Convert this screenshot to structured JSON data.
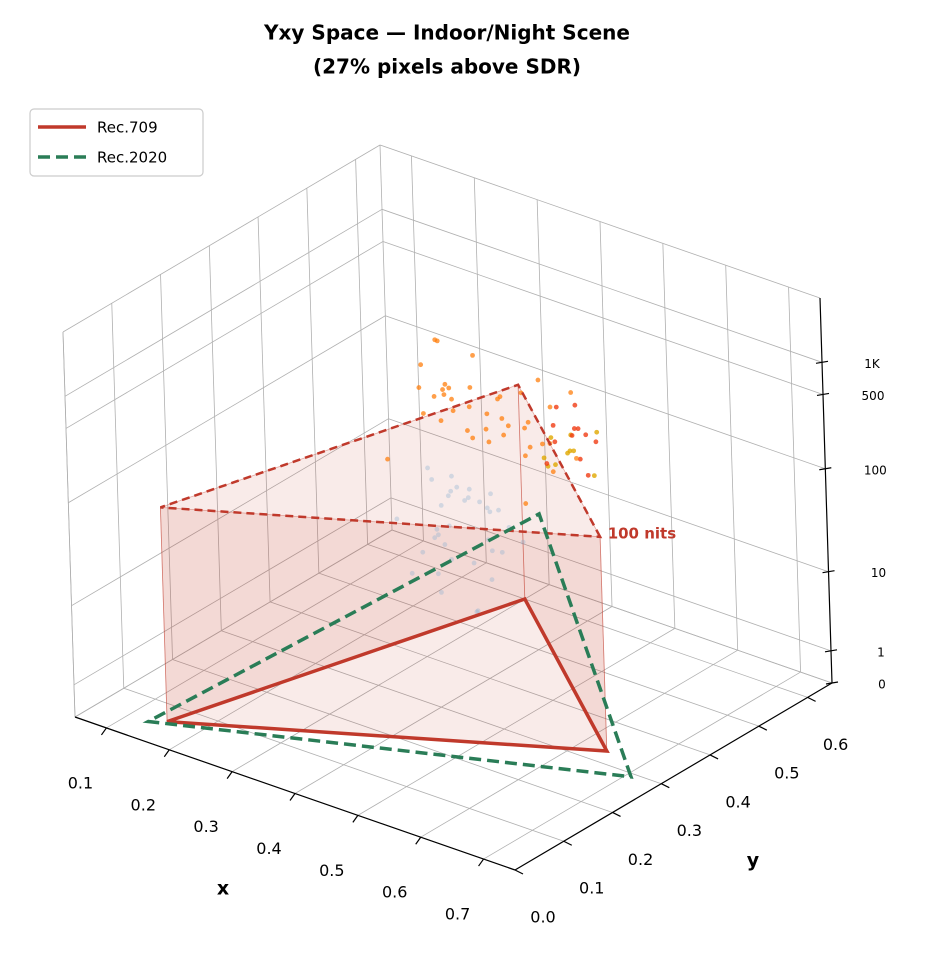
{
  "chart_data": {
    "type": "scatter3d",
    "title": "Yxy Space — Indoor/Night Scene",
    "subtitle": "(27% pixels above SDR)",
    "x_label": "x",
    "y_label": "y",
    "xlim": [
      0.05,
      0.75
    ],
    "ylim": [
      0,
      0.65
    ],
    "zlim": [
      0,
      4000
    ],
    "zscale": "log1p",
    "xticks": [
      0.1,
      0.2,
      0.3,
      0.4,
      0.5,
      0.6,
      0.7
    ],
    "yticks": [
      {
        "value": 0,
        "label": "0.0"
      },
      0.1,
      0.2,
      0.3,
      0.4,
      0.5,
      0.6
    ],
    "zticks": [
      0,
      1,
      10,
      100,
      500,
      {
        "value": 1000,
        "label": "1K"
      }
    ],
    "grid": true,
    "legend": "upper left",
    "gamuts": [
      {
        "name": "Rec.709",
        "color": "#c0392b",
        "dash": "solid",
        "x": [
          0.64,
          0.3,
          0.15
        ],
        "y": [
          0.33,
          0.6,
          0.06
        ]
      },
      {
        "name": "Rec.2020",
        "color": "#2a7d57",
        "dash": "dashed",
        "x": [
          0.708,
          0.17,
          0.131
        ],
        "y": [
          0.292,
          0.797,
          0.046
        ]
      }
    ],
    "sdr_level": 100,
    "annotation": "100 nits",
    "annotation_color": "#c0392b",
    "point_groups": [
      {
        "color": "#8aaed0",
        "opacity": 0.35,
        "x": [
          0.32,
          0.35,
          0.38,
          0.41,
          0.44,
          0.34,
          0.37,
          0.4,
          0.43,
          0.33,
          0.36,
          0.39,
          0.42,
          0.45,
          0.31,
          0.38,
          0.41,
          0.35,
          0.43,
          0.37,
          0.4,
          0.34,
          0.44,
          0.36,
          0.39,
          0.42,
          0.33,
          0.46,
          0.38,
          0.41,
          0.35,
          0.4,
          0.37,
          0.43,
          0.39
        ],
        "y": [
          0.35,
          0.38,
          0.33,
          0.4,
          0.36,
          0.42,
          0.31,
          0.37,
          0.34,
          0.39,
          0.41,
          0.32,
          0.38,
          0.35,
          0.4,
          0.43,
          0.3,
          0.36,
          0.39,
          0.34,
          0.41,
          0.37,
          0.33,
          0.44,
          0.38,
          0.35,
          0.31,
          0.4,
          0.36,
          0.42,
          0.39,
          0.33,
          0.37,
          0.41,
          0.34
        ],
        "z": [
          8,
          15,
          30,
          55,
          12,
          40,
          22,
          70,
          6,
          18,
          35,
          9,
          48,
          26,
          60,
          14,
          80,
          20,
          45,
          11,
          33,
          65,
          7,
          28,
          52,
          17,
          38,
          24,
          90,
          13,
          42,
          19,
          58,
          27,
          36
        ]
      },
      {
        "color": "#e0a800",
        "opacity": 0.8,
        "x": [
          0.44,
          0.46,
          0.48,
          0.45,
          0.47,
          0.49,
          0.43,
          0.46,
          0.48,
          0.45
        ],
        "y": [
          0.48,
          0.5,
          0.47,
          0.52,
          0.49,
          0.51,
          0.5,
          0.47,
          0.53,
          0.46
        ],
        "z": [
          70,
          95,
          120,
          80,
          150,
          60,
          110,
          85,
          130,
          100
        ]
      },
      {
        "color": "#f03c14",
        "opacity": 0.8,
        "x": [
          0.55,
          0.58,
          0.61,
          0.56,
          0.59,
          0.62,
          0.54,
          0.57,
          0.6,
          0.63,
          0.56,
          0.59
        ],
        "y": [
          0.34,
          0.36,
          0.33,
          0.38,
          0.35,
          0.32,
          0.37,
          0.33,
          0.36,
          0.34,
          0.35,
          0.37
        ],
        "z": [
          300,
          650,
          900,
          450,
          1200,
          520,
          380,
          800,
          260,
          700,
          1000,
          560
        ]
      },
      {
        "color": "#ff7f0e",
        "opacity": 0.75,
        "x": [
          0.31,
          0.34,
          0.37,
          0.4,
          0.43,
          0.46,
          0.49,
          0.52,
          0.33,
          0.36,
          0.39,
          0.42,
          0.45,
          0.48,
          0.51,
          0.54,
          0.32,
          0.35,
          0.38,
          0.41,
          0.44,
          0.47,
          0.5,
          0.53,
          0.3,
          0.36,
          0.42,
          0.48,
          0.34,
          0.4,
          0.46,
          0.52,
          0.38,
          0.44,
          0.5,
          0.33,
          0.39,
          0.45,
          0.51,
          0.41
        ],
        "y": [
          0.32,
          0.4,
          0.36,
          0.44,
          0.34,
          0.41,
          0.38,
          0.43,
          0.37,
          0.33,
          0.42,
          0.35,
          0.39,
          0.31,
          0.45,
          0.36,
          0.41,
          0.38,
          0.33,
          0.4,
          0.43,
          0.35,
          0.37,
          0.32,
          0.44,
          0.39,
          0.31,
          0.42,
          0.35,
          0.37,
          0.44,
          0.39,
          0.41,
          0.33,
          0.36,
          0.43,
          0.34,
          0.38,
          0.4,
          0.42
        ],
        "z": [
          120,
          340,
          560,
          210,
          880,
          150,
          430,
          690,
          260,
          1100,
          180,
          520,
          310,
          760,
          140,
          390,
          950,
          230,
          610,
          170,
          470,
          820,
          280,
          130,
          700,
          360,
          1000,
          200,
          540,
          250,
          640,
          160,
          900,
          330,
          450,
          190,
          780,
          270,
          580,
          380
        ]
      }
    ]
  }
}
